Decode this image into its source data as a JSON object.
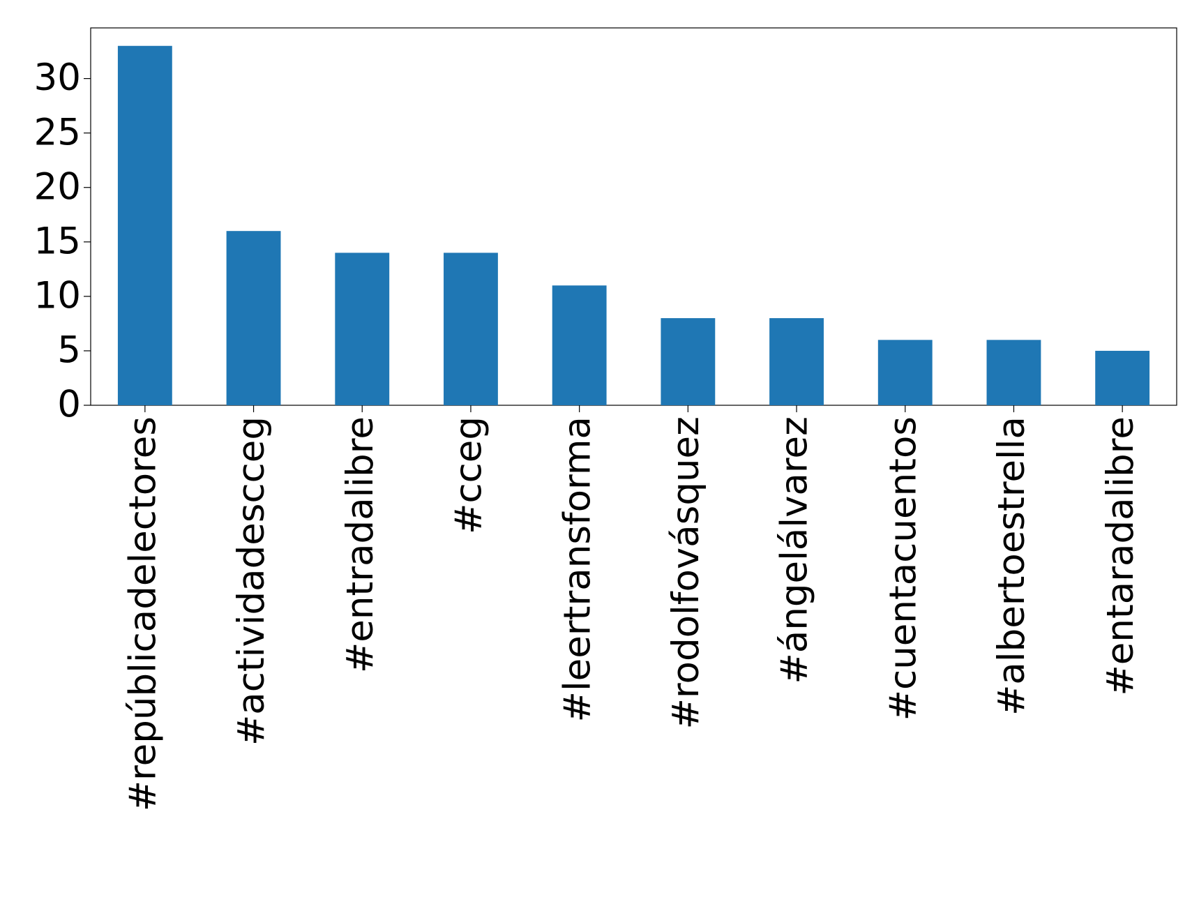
{
  "chart_data": {
    "type": "bar",
    "categories": [
      "#repúblicadelectores",
      "#actividadescceg",
      "#entradalibre",
      "#cceg",
      "#leertransforma",
      "#rodolfovásquez",
      "#ángelálvarez",
      "#cuentacuentos",
      "#albertoestrella",
      "#entaradalibre"
    ],
    "values": [
      33,
      16,
      14,
      14,
      11,
      8,
      8,
      6,
      6,
      5
    ],
    "color": "#1f77b4",
    "ylim": [
      0,
      34.65
    ],
    "yticks": [
      0,
      5,
      10,
      15,
      20,
      25,
      30
    ],
    "grid": false
  }
}
